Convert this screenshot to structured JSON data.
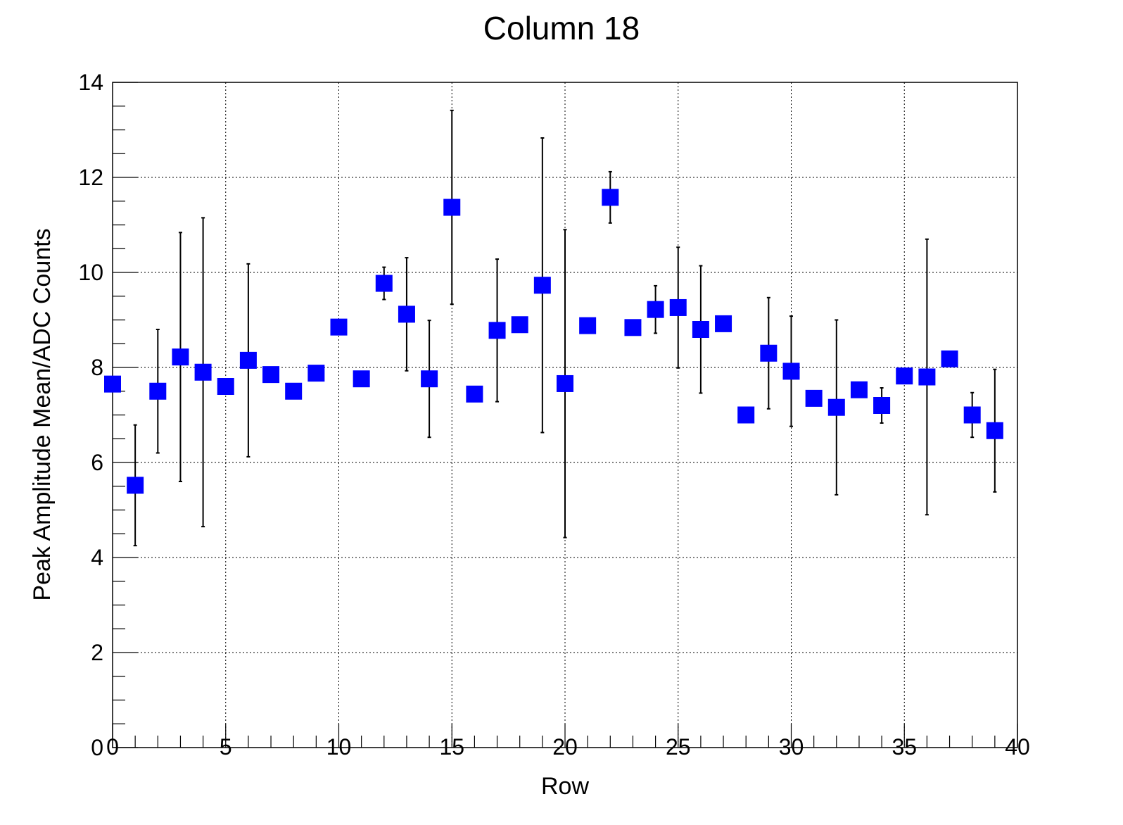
{
  "chart_data": {
    "type": "scatter",
    "title": "Column 18",
    "xlabel": "Row",
    "ylabel": "Peak Amplitude Mean/ADC Counts",
    "xlim": [
      0,
      40
    ],
    "ylim": [
      0,
      14
    ],
    "xticks": [
      0,
      5,
      10,
      15,
      20,
      25,
      30,
      35,
      40
    ],
    "yticks": [
      0,
      2,
      4,
      6,
      8,
      10,
      12,
      14
    ],
    "grid": true,
    "marker": "square",
    "marker_color": "#0000ff",
    "series": [
      {
        "x": [
          0,
          1,
          2,
          3,
          4,
          5,
          6,
          7,
          8,
          9,
          10,
          11,
          12,
          13,
          14,
          15,
          16,
          17,
          18,
          19,
          20,
          21,
          22,
          23,
          24,
          25,
          26,
          27,
          28,
          29,
          30,
          31,
          32,
          33,
          34,
          35,
          36,
          37,
          38,
          39
        ],
        "y": [
          7.65,
          5.52,
          7.5,
          8.22,
          7.9,
          7.6,
          8.15,
          7.85,
          7.5,
          7.88,
          8.85,
          7.76,
          9.77,
          9.12,
          7.76,
          11.37,
          7.44,
          8.78,
          8.9,
          9.73,
          7.66,
          8.88,
          11.58,
          8.84,
          9.22,
          9.26,
          8.8,
          8.92,
          7.0,
          8.3,
          7.92,
          7.35,
          7.16,
          7.53,
          7.2,
          7.82,
          7.8,
          8.18,
          7.0,
          6.67
        ],
        "err": [
          0,
          1.27,
          1.3,
          2.62,
          3.25,
          0,
          2.03,
          0,
          0,
          0,
          0,
          0,
          0.34,
          1.19,
          1.23,
          2.04,
          0,
          1.5,
          0,
          3.1,
          3.24,
          0,
          0.54,
          0,
          0.5,
          1.27,
          1.34,
          0,
          0,
          1.17,
          1.16,
          0,
          1.84,
          0,
          0.37,
          0,
          2.9,
          0,
          0.47,
          1.29
        ]
      }
    ]
  }
}
